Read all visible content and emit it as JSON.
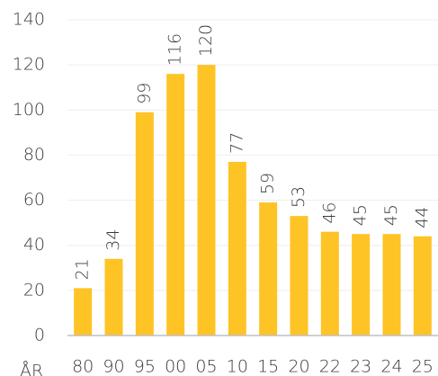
{
  "chart_data": {
    "type": "bar",
    "x_label": "ÅR",
    "categories": [
      "80",
      "90",
      "95",
      "00",
      "05",
      "10",
      "15",
      "20",
      "22",
      "23",
      "24",
      "25"
    ],
    "values": [
      21,
      34,
      99,
      116,
      120,
      77,
      59,
      53,
      46,
      45,
      45,
      44
    ],
    "color": "#fec325",
    "ylim": [
      0,
      140
    ],
    "yticks": [
      0,
      20,
      40,
      60,
      80,
      100,
      120,
      140
    ],
    "grid": true,
    "value_labels_shown": true
  }
}
